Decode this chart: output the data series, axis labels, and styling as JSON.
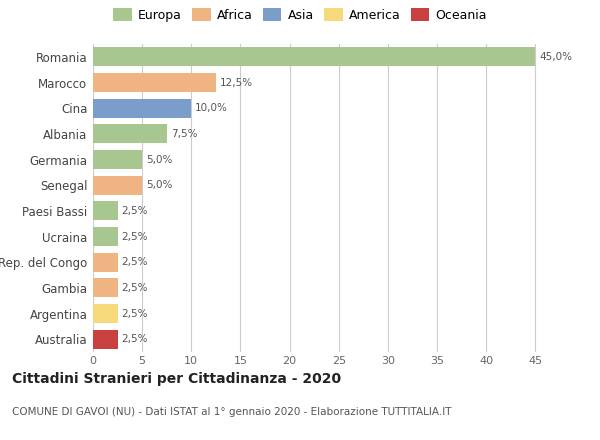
{
  "countries": [
    "Romania",
    "Marocco",
    "Cina",
    "Albania",
    "Germania",
    "Senegal",
    "Paesi Bassi",
    "Ucraina",
    "Rep. del Congo",
    "Gambia",
    "Argentina",
    "Australia"
  ],
  "values": [
    45.0,
    12.5,
    10.0,
    7.5,
    5.0,
    5.0,
    2.5,
    2.5,
    2.5,
    2.5,
    2.5,
    2.5
  ],
  "labels": [
    "45,0%",
    "12,5%",
    "10,0%",
    "7,5%",
    "5,0%",
    "5,0%",
    "2,5%",
    "2,5%",
    "2,5%",
    "2,5%",
    "2,5%",
    "2,5%"
  ],
  "colors": [
    "#a8c68f",
    "#f0b482",
    "#7b9dc9",
    "#a8c68f",
    "#a8c68f",
    "#f0b482",
    "#a8c68f",
    "#a8c68f",
    "#f0b482",
    "#f0b482",
    "#f5d97a",
    "#c94040"
  ],
  "legend_labels": [
    "Europa",
    "Africa",
    "Asia",
    "America",
    "Oceania"
  ],
  "legend_colors": [
    "#a8c68f",
    "#f0b482",
    "#7b9dc9",
    "#f5d97a",
    "#c94040"
  ],
  "title": "Cittadini Stranieri per Cittadinanza - 2020",
  "subtitle": "COMUNE DI GAVOI (NU) - Dati ISTAT al 1° gennaio 2020 - Elaborazione TUTTITALIA.IT",
  "xlim": [
    0,
    47
  ],
  "xticks": [
    0,
    5,
    10,
    15,
    20,
    25,
    30,
    35,
    40,
    45
  ],
  "bg_color": "#ffffff",
  "grid_color": "#cccccc",
  "bar_height": 0.75
}
